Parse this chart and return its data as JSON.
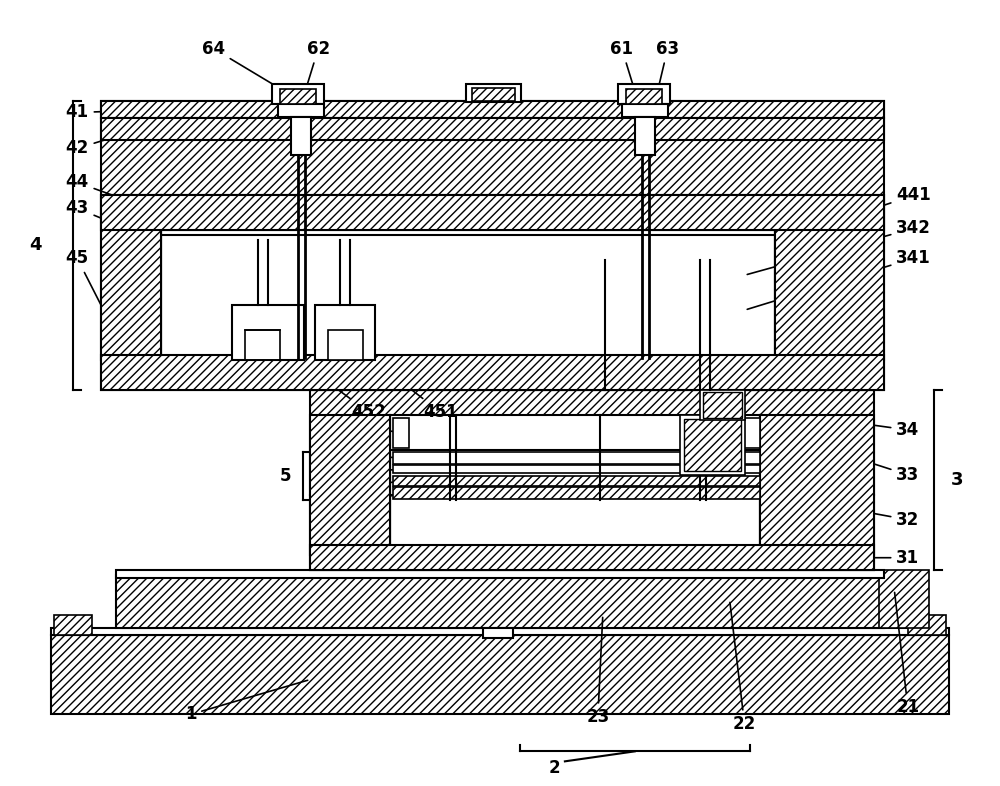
{
  "bg": "#ffffff",
  "lc": "#000000",
  "figsize": [
    10.0,
    7.86
  ],
  "dpi": 100,
  "hatch": "////",
  "lw": 1.5
}
